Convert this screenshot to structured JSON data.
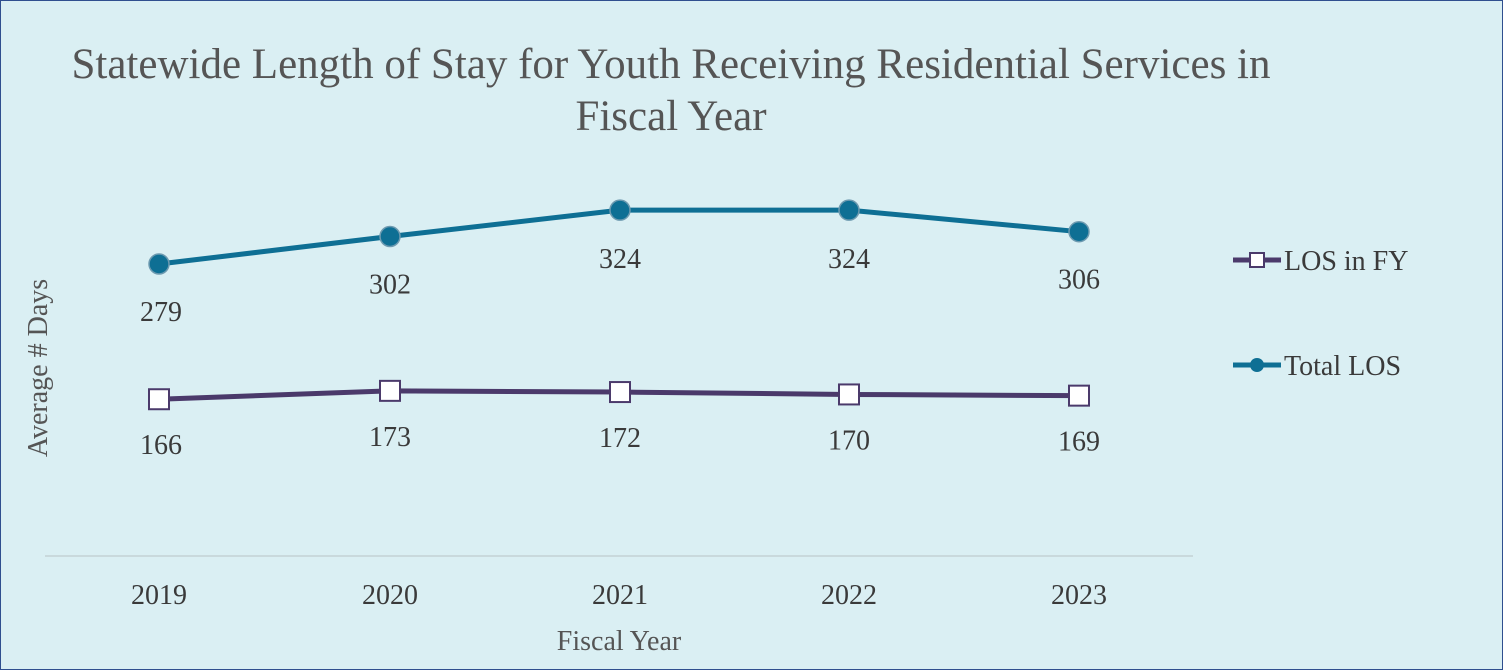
{
  "chart_data": {
    "type": "line",
    "title": "Statewide Length of Stay for Youth Receiving Residential Services in Fiscal Year",
    "xlabel": "Fiscal Year",
    "ylabel": "Average # Days",
    "categories": [
      "2019",
      "2020",
      "2021",
      "2022",
      "2023"
    ],
    "ylim": [
      0,
      400
    ],
    "grid": false,
    "legend_position": "right",
    "series": [
      {
        "name": "LOS in FY",
        "values": [
          166,
          173,
          172,
          170,
          169
        ],
        "labels": [
          "166",
          "173",
          "172",
          "170",
          "169"
        ],
        "color": "#4b3a6b",
        "marker": "square"
      },
      {
        "name": "Total LOS",
        "values": [
          279,
          302,
          324,
          324,
          306
        ],
        "labels": [
          "279",
          "302",
          "324",
          "324",
          "306"
        ],
        "color": "#0e6f94",
        "marker": "circle"
      }
    ]
  }
}
